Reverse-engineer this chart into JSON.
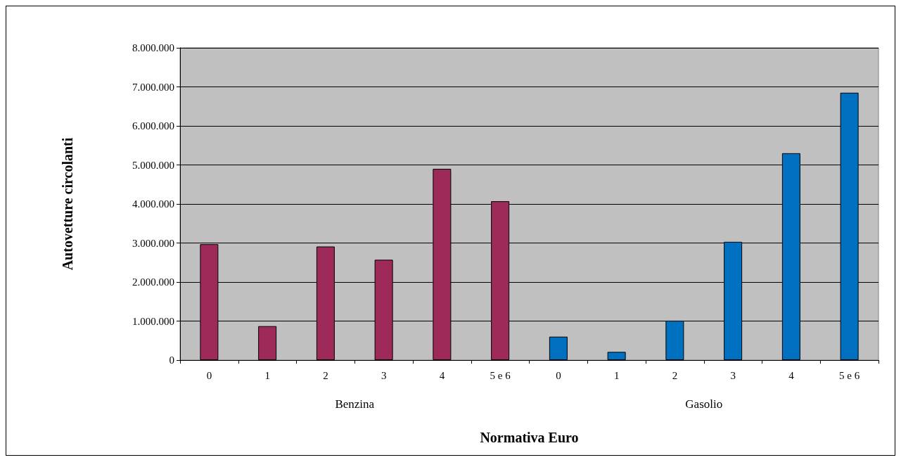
{
  "chart_data": {
    "type": "bar",
    "xlabel": "Normativa Euro",
    "ylabel": "Autovetture circolanti",
    "categories": [
      "0",
      "1",
      "2",
      "3",
      "4",
      "5 e 6",
      "0",
      "1",
      "2",
      "3",
      "4",
      "5 e 6"
    ],
    "values": [
      2970000,
      870000,
      2910000,
      2570000,
      4900000,
      4070000,
      600000,
      210000,
      1010000,
      3030000,
      5300000,
      6850000
    ],
    "colors": [
      "#9e2a5a",
      "#9e2a5a",
      "#9e2a5a",
      "#9e2a5a",
      "#9e2a5a",
      "#9e2a5a",
      "#0070c0",
      "#0070c0",
      "#0070c0",
      "#0070c0",
      "#0070c0",
      "#0070c0"
    ],
    "annotations": [
      "Benzina",
      "Gasolio"
    ],
    "ylim": [
      0,
      8000000
    ],
    "yticks": [
      0,
      {
        "value": 1000000,
        "label": "1.000.000"
      },
      {
        "value": 2000000,
        "label": "2.000.000"
      },
      {
        "value": 3000000,
        "label": "3.000.000"
      },
      {
        "value": 4000000,
        "label": "4.000.000"
      },
      {
        "value": 5000000,
        "label": "5.000.000"
      },
      {
        "value": 6000000,
        "label": "6.000.000"
      },
      {
        "value": 7000000,
        "label": "7.000.000"
      },
      {
        "value": 8000000,
        "label": "8.000.000"
      }
    ],
    "grid": "y"
  }
}
